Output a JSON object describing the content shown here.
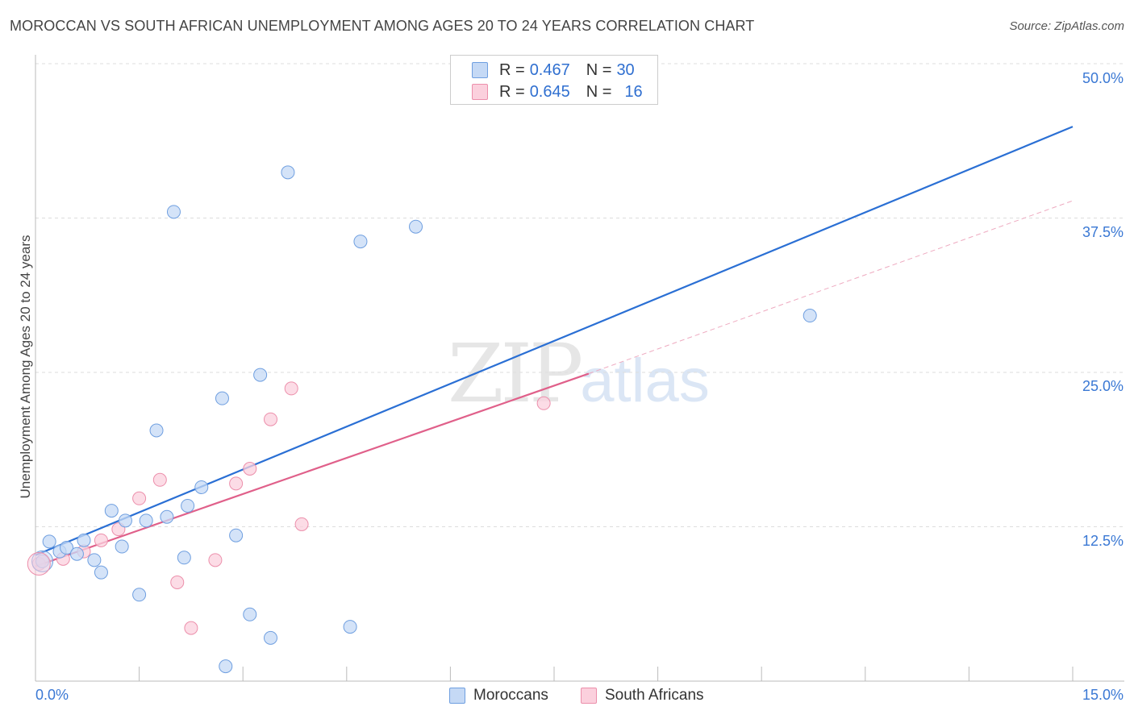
{
  "title": "MOROCCAN VS SOUTH AFRICAN UNEMPLOYMENT AMONG AGES 20 TO 24 YEARS CORRELATION CHART",
  "source": "Source: ZipAtlas.com",
  "watermark": {
    "zip": "ZIP",
    "atlas": "atlas"
  },
  "legend": {
    "moroccans": {
      "r_label": "R =",
      "r_value": "0.467",
      "n_label": "N =",
      "n_value": "30"
    },
    "south_africans": {
      "r_label": "R =",
      "r_value": "0.645",
      "n_label": "N =",
      "n_value": "16"
    }
  },
  "colors": {
    "moroccans_fill": "#c5d9f5",
    "moroccans_stroke": "#6f9fe0",
    "moroccans_line": "#2a6fd4",
    "south_africans_fill": "#fbd0dd",
    "south_africans_stroke": "#ec8fab",
    "south_africans_line": "#e0608a",
    "grid": "#dddddd",
    "axis_text": "#3a78d4"
  },
  "chart_data": {
    "type": "scatter",
    "title": "MOROCCAN VS SOUTH AFRICAN UNEMPLOYMENT AMONG AGES 20 TO 24 YEARS CORRELATION CHART",
    "xlabel": "",
    "ylabel": "Unemployment Among Ages 20 to 24 years",
    "xlim": [
      0,
      15
    ],
    "ylim": [
      0,
      50
    ],
    "x_tick_labels": [
      "0.0%",
      "15.0%"
    ],
    "y_ticks": [
      12.5,
      25.0,
      37.5,
      50.0
    ],
    "y_tick_labels": [
      "12.5%",
      "25.0%",
      "37.5%",
      "50.0%"
    ],
    "legend_position": "top-center",
    "series": [
      {
        "name": "Moroccans",
        "points": [
          [
            0.1,
            9.7
          ],
          [
            0.2,
            11.3
          ],
          [
            0.35,
            10.5
          ],
          [
            0.45,
            10.8
          ],
          [
            0.6,
            10.3
          ],
          [
            0.7,
            11.4
          ],
          [
            0.85,
            9.8
          ],
          [
            0.95,
            8.8
          ],
          [
            1.1,
            13.8
          ],
          [
            1.25,
            10.9
          ],
          [
            1.3,
            13.0
          ],
          [
            1.5,
            7.0
          ],
          [
            1.6,
            13.0
          ],
          [
            1.75,
            20.3
          ],
          [
            1.9,
            13.3
          ],
          [
            2.0,
            38.0
          ],
          [
            2.15,
            10.0
          ],
          [
            2.2,
            14.2
          ],
          [
            2.4,
            15.7
          ],
          [
            2.7,
            22.9
          ],
          [
            2.75,
            1.2
          ],
          [
            2.9,
            11.8
          ],
          [
            3.1,
            5.4
          ],
          [
            3.25,
            24.8
          ],
          [
            3.4,
            3.5
          ],
          [
            3.65,
            41.2
          ],
          [
            4.55,
            4.4
          ],
          [
            4.7,
            35.6
          ],
          [
            5.5,
            36.8
          ],
          [
            11.2,
            29.6
          ]
        ],
        "trend": {
          "x": [
            0.0,
            15.0
          ],
          "y": [
            10.2,
            44.9
          ]
        }
      },
      {
        "name": "South Africans",
        "points": [
          [
            0.05,
            9.5
          ],
          [
            0.4,
            9.9
          ],
          [
            0.7,
            10.5
          ],
          [
            0.95,
            11.4
          ],
          [
            1.2,
            12.3
          ],
          [
            1.5,
            14.8
          ],
          [
            1.8,
            16.3
          ],
          [
            2.05,
            8.0
          ],
          [
            2.25,
            4.3
          ],
          [
            2.6,
            9.8
          ],
          [
            2.9,
            16.0
          ],
          [
            3.1,
            17.2
          ],
          [
            3.4,
            21.2
          ],
          [
            3.7,
            23.7
          ],
          [
            3.85,
            12.7
          ],
          [
            7.35,
            22.5
          ]
        ],
        "trend": {
          "x": [
            0.0,
            8.0
          ],
          "y": [
            9.3,
            24.9
          ]
        },
        "trend_extension": {
          "x": [
            8.0,
            15.0
          ],
          "y": [
            24.9,
            38.9
          ]
        }
      }
    ]
  },
  "bottom_legend": {
    "moroccans": "Moroccans",
    "south_africans": "South Africans"
  }
}
